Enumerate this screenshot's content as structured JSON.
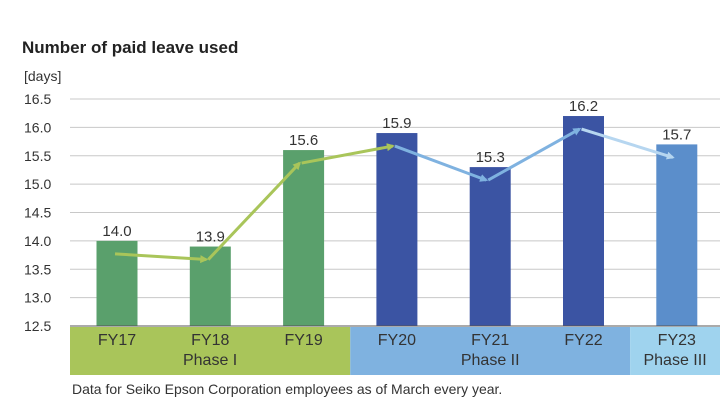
{
  "chart_data": {
    "type": "bar",
    "title": "Number of paid leave used",
    "y_unit": "[days]",
    "categories": [
      "FY17",
      "FY18",
      "FY19",
      "FY20",
      "FY21",
      "FY22",
      "FY23"
    ],
    "values": [
      14.0,
      13.9,
      15.6,
      15.9,
      15.3,
      16.2,
      15.7
    ],
    "data_labels": [
      "14.0",
      "13.9",
      "15.6",
      "15.9",
      "15.3",
      "16.2",
      "15.7"
    ],
    "ylim": [
      12.5,
      16.5
    ],
    "yticks": [
      "12.5",
      "13.0",
      "13.5",
      "14.0",
      "14.5",
      "15.0",
      "15.5",
      "16.0",
      "16.5"
    ],
    "grid": true,
    "phases": [
      {
        "label": "Phase I",
        "from": 0,
        "to": 2,
        "color": "#a9c55a"
      },
      {
        "label": "Phase II",
        "from": 3,
        "to": 5,
        "color": "#7fb2e0"
      },
      {
        "label": "Phase III",
        "from": 6,
        "to": 6,
        "color": "#9fd3ee"
      }
    ],
    "bar_colors": [
      "#5aa06c",
      "#5aa06c",
      "#5aa06c",
      "#3b54a3",
      "#3b54a3",
      "#3b54a3",
      "#5b8ecb"
    ],
    "arrow_colors": [
      "#a9c55a",
      "#a9c55a",
      "#a9c55a",
      "#7fb2e0",
      "#7fb2e0",
      "#b6d6f0"
    ]
  },
  "footnote": "Data for Seiko Epson Corporation employees as of March every year."
}
